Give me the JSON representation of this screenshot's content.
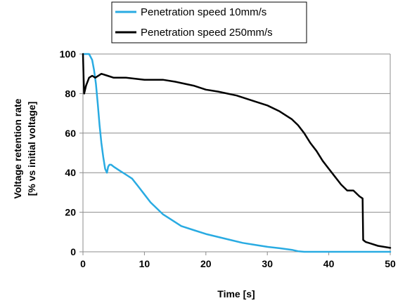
{
  "chart_data": {
    "type": "line",
    "xlabel": "Time [s]",
    "ylabel_line1": "Voltage retention rate",
    "ylabel_line2": "[% vs initial voltage]",
    "xlim": [
      0,
      50
    ],
    "ylim": [
      0,
      100
    ],
    "xticks": [
      0,
      10,
      20,
      30,
      40,
      50
    ],
    "yticks": [
      0,
      20,
      40,
      60,
      80,
      100
    ],
    "grid": "horizontal",
    "legend_position": "top",
    "series": [
      {
        "name": "Penetration speed 10mm/s",
        "color": "#29ABE2",
        "x": [
          0,
          0.6,
          1.0,
          1.5,
          1.8,
          2.1,
          2.4,
          2.7,
          3.0,
          3.3,
          3.6,
          3.9,
          4.1,
          4.3,
          4.6,
          5.0,
          6.0,
          7.0,
          8.0,
          9.0,
          10.0,
          11.0,
          12.0,
          13.0,
          14.0,
          15.0,
          16.0,
          18.0,
          20.0,
          22.0,
          24.0,
          26.0,
          28.0,
          30.0,
          32.0,
          34.0,
          35.0,
          36.0,
          40.0,
          45.0,
          50.0
        ],
        "y": [
          100,
          100,
          100,
          97,
          92,
          85,
          75,
          64,
          55,
          48,
          42,
          40,
          43,
          44,
          44,
          43,
          41,
          39,
          37,
          33,
          29,
          25,
          22,
          19,
          17,
          15,
          13,
          11,
          9,
          7.5,
          6,
          4.5,
          3.5,
          2.5,
          1.8,
          1.0,
          0.3,
          0,
          0,
          0,
          0
        ]
      },
      {
        "name": "Penetration speed 250mm/s",
        "color": "#000000",
        "x": [
          0,
          0.1,
          0.2,
          0.5,
          1.0,
          1.5,
          2.0,
          3.0,
          4.0,
          5.0,
          7.0,
          10.0,
          13.0,
          15.0,
          18.0,
          20.0,
          22.0,
          25.0,
          28.0,
          30.0,
          32.0,
          33.0,
          34.0,
          35.0,
          36.0,
          37.0,
          38.0,
          39.0,
          40.0,
          41.0,
          42.0,
          43.0,
          44.0,
          45.0,
          45.5,
          45.6,
          46.0,
          47.0,
          48.0,
          50.0
        ],
        "y": [
          100,
          88,
          80,
          84,
          88,
          89,
          88,
          90,
          89,
          88,
          88,
          87,
          87,
          86,
          84,
          82,
          81,
          79,
          76,
          74,
          71,
          69,
          67,
          64,
          60,
          55,
          51,
          46,
          42,
          38,
          34,
          31,
          31,
          28,
          27,
          6,
          5,
          4,
          3,
          2
        ]
      }
    ]
  }
}
